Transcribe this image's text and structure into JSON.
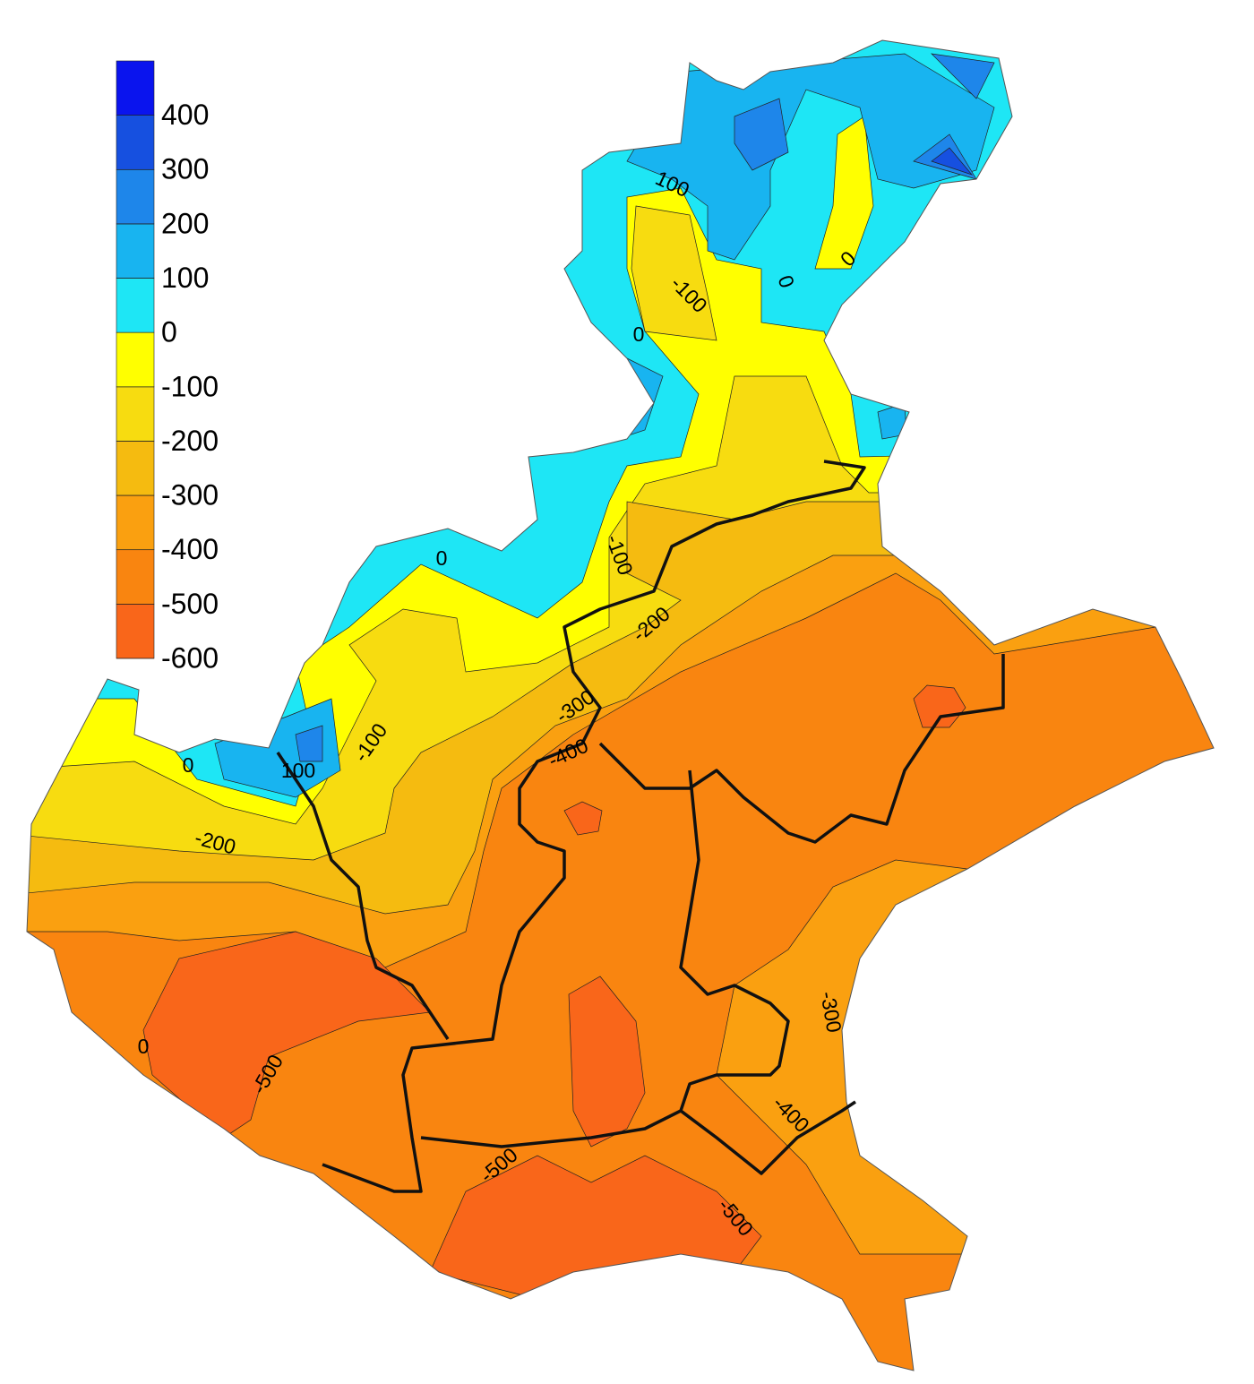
{
  "legend": {
    "range": [
      -600,
      500
    ],
    "ticks": [
      400,
      300,
      200,
      100,
      0,
      -100,
      -200,
      -300,
      -400,
      -500,
      -600
    ],
    "colors": [
      "#f9661a",
      "#f98510",
      "#faa010",
      "#f5bb10",
      "#f7dc10",
      "#ffff00",
      "#1ee6f5",
      "#18b4f0",
      "#1e86ea",
      "#1650e0",
      "#0a14ee"
    ]
  },
  "contour_labels": [
    100,
    -100,
    0,
    0,
    0,
    0,
    -100,
    -200,
    -300,
    -400,
    -100,
    100,
    0,
    -200,
    0,
    -500,
    -500,
    -500,
    -400,
    -300
  ]
}
